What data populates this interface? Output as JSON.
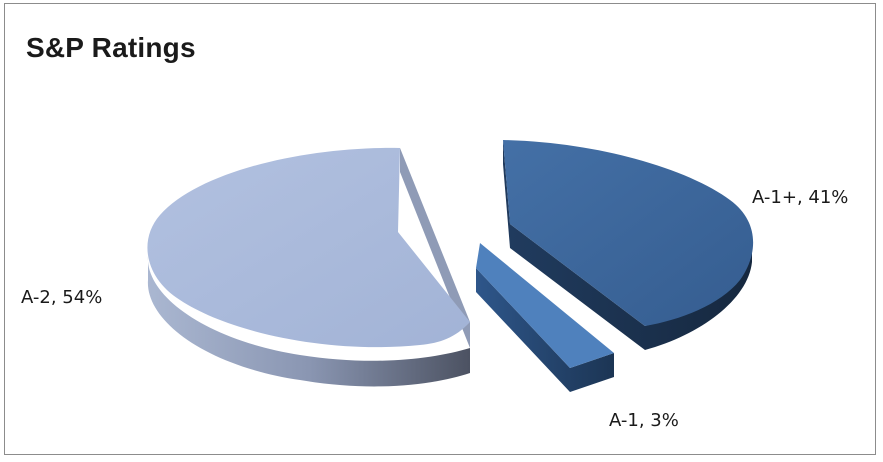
{
  "chart_data": {
    "type": "pie",
    "title": "S&P Ratings",
    "categories": [
      "A-1+",
      "A-1",
      "A-2"
    ],
    "values": [
      41,
      3,
      54
    ],
    "units": "%",
    "data_labels": [
      "A-1+, 41%",
      "A-1, 3%",
      "A-2, 54%"
    ],
    "style": "3d-exploded",
    "legend": "none"
  },
  "colors": {
    "A-1+": "#3a6499",
    "A-1": "#4f81bd",
    "A-2": "#a9b9da",
    "A-1+_side": "#1e3657",
    "A-1_side": "#274a75",
    "A-2_side": "#66708a"
  }
}
